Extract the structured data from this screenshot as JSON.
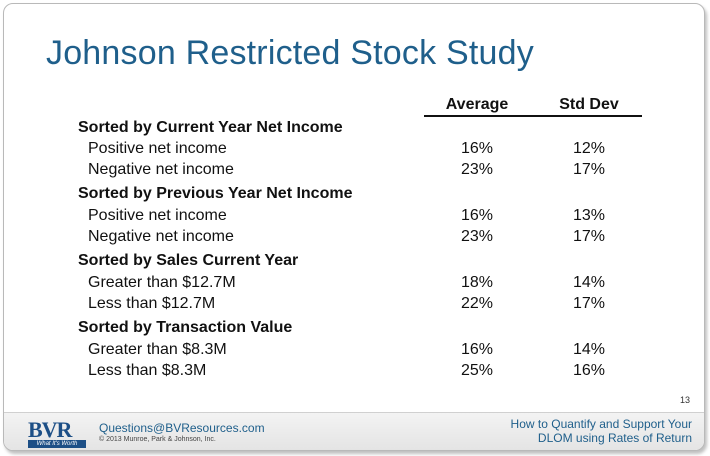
{
  "title": "Johnson Restricted Stock Study",
  "columns": {
    "average": "Average",
    "std_dev": "Std Dev"
  },
  "sections": [
    {
      "title": "Sorted by Current Year Net Income",
      "rows": [
        {
          "label": "Positive net income",
          "average": "16%",
          "std_dev": "12%"
        },
        {
          "label": "Negative net income",
          "average": "23%",
          "std_dev": "17%"
        }
      ]
    },
    {
      "title": "Sorted by Previous Year Net Income",
      "rows": [
        {
          "label": "Positive net income",
          "average": "16%",
          "std_dev": "13%"
        },
        {
          "label": "Negative net income",
          "average": "23%",
          "std_dev": "17%"
        }
      ]
    },
    {
      "title": "Sorted by Sales Current Year",
      "rows": [
        {
          "label": "Greater than $12.7M",
          "average": "18%",
          "std_dev": "14%"
        },
        {
          "label": "Less than $12.7M",
          "average": "22%",
          "std_dev": "17%"
        }
      ]
    },
    {
      "title": "Sorted by Transaction Value",
      "rows": [
        {
          "label": "Greater than $8.3M",
          "average": "16%",
          "std_dev": "14%"
        },
        {
          "label": "Less than $8.3M",
          "average": "25%",
          "std_dev": "16%"
        }
      ]
    }
  ],
  "page_number": "13",
  "footer": {
    "logo_text": "BVR",
    "logo_tagline": "What It's Worth",
    "email": "Questions@BVResources.com",
    "copyright": "© 2013 Munroe, Park & Johnson, Inc.",
    "right_line1": "How to Quantify and Support Your",
    "right_line2": "DLOM using Rates of Return"
  },
  "colors": {
    "title": "#1f5f8b",
    "logo": "#1d4f86"
  }
}
